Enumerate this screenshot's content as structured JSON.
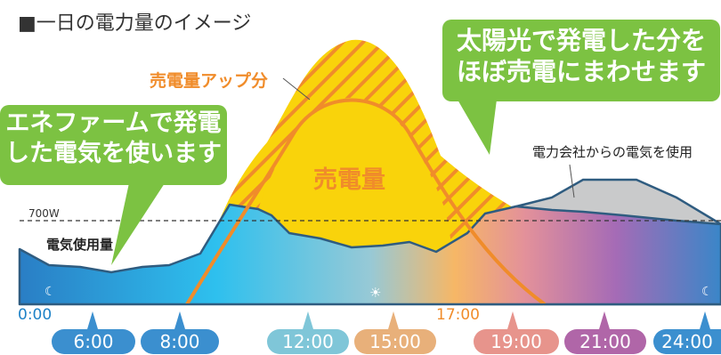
{
  "title": "■一日の電力量のイメージ",
  "callouts": {
    "left_line1": "エネファームで発電",
    "left_line2": "した電気を使います",
    "right_line1": "太陽光で発電した分を",
    "right_line2": "ほぼ売電にまわせます"
  },
  "labels": {
    "sell_up": "売電量アップ分",
    "sell_amount": "売電量",
    "grid_power": "電力会社からの電気を使用",
    "usage": "電気使用量",
    "threshold": "700W",
    "start_time": "0:00",
    "mid_time": "17:00"
  },
  "icons": {
    "moon": "moon-icon",
    "sun": "sun-icon"
  },
  "colors": {
    "green": "#7cc242",
    "orange": "#f08c2a",
    "yellow": "#f9d30b",
    "gray": "#c9cacb",
    "dark_blue": "#2f5c80",
    "blue_text": "#1e82c7"
  },
  "timeline": {
    "times": [
      "6:00",
      "8:00",
      "12:00",
      "15:00",
      "19:00",
      "21:00",
      "24:00"
    ],
    "colors": [
      "#3b8fcf",
      "#3b8fcf",
      "#7fc6d8",
      "#e8b07a",
      "#e7948c",
      "#b066a8",
      "#3b8fcf"
    ]
  }
}
